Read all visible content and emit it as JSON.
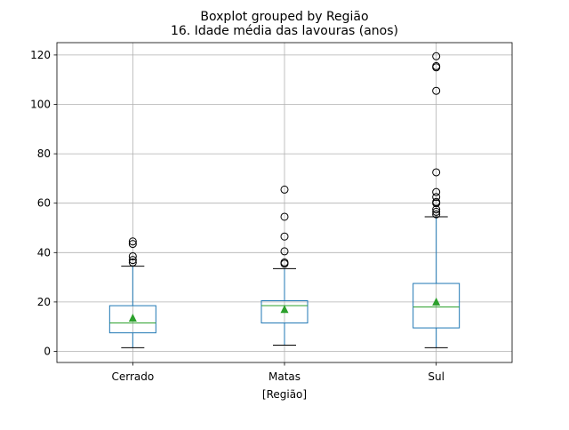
{
  "chart_data": {
    "type": "box",
    "suptitle": "Boxplot grouped by Região",
    "title": "16. Idade média das lavouras  (anos)",
    "xlabel": "[Região]",
    "ylabel": "",
    "categories": [
      "Cerrado",
      "Matas",
      "Sul"
    ],
    "ylim": [
      -4.5,
      125
    ],
    "yticks": [
      0,
      20,
      40,
      60,
      80,
      100,
      120
    ],
    "grid": true,
    "boxes": [
      {
        "category": "Cerrado",
        "whisker_low": 1.5,
        "q1": 7.5,
        "median": 11.5,
        "q3": 18.5,
        "whisker_high": 34.5,
        "mean": 13.5,
        "outliers": [
          36,
          37,
          38.5,
          43.5,
          44.5
        ]
      },
      {
        "category": "Matas",
        "whisker_low": 2.5,
        "q1": 11.5,
        "median": 18.5,
        "q3": 20.5,
        "whisker_high": 33.5,
        "mean": 17,
        "outliers": [
          35.5,
          36,
          40.5,
          46.5,
          54.5,
          65.5
        ]
      },
      {
        "category": "Sul",
        "whisker_low": 1.5,
        "q1": 9.5,
        "median": 18,
        "q3": 27.5,
        "whisker_high": 54.5,
        "mean": 20,
        "outliers": [
          55.5,
          56.5,
          57.5,
          60,
          60.5,
          62.5,
          64.5,
          72.5,
          105.5,
          115,
          115.5,
          119.5
        ]
      }
    ]
  },
  "colors": {
    "box": "#1f77b4",
    "median": "#2ca02c",
    "mean_marker": "#2ca02c",
    "whisker_cap": "#000000",
    "outlier": "#000000",
    "grid": "#b0b0b0"
  }
}
